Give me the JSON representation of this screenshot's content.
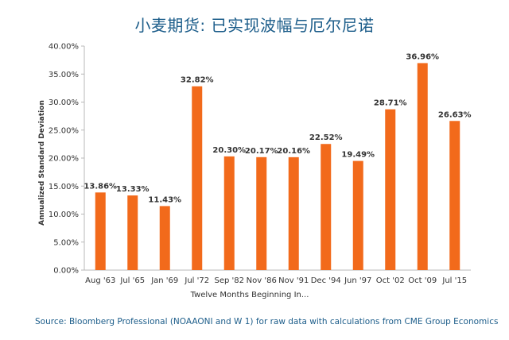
{
  "title": "小麦期货: 已实现波幅与厄尔尼诺",
  "source": "Source: Bloomberg Professional (NOAAONI and W 1) for raw data with calculations from CME Group Economics",
  "chart_data": {
    "type": "bar",
    "categories": [
      "Aug '63",
      "Jul '65",
      "Jan '69",
      "Jul '72",
      "Sep '82",
      "Nov '86",
      "Nov '91",
      "Dec '94",
      "Jun '97",
      "Oct '02",
      "Oct '09",
      "Jul '15"
    ],
    "values": [
      13.86,
      13.33,
      11.43,
      32.82,
      20.3,
      20.17,
      20.16,
      22.52,
      19.49,
      28.71,
      36.96,
      26.63
    ],
    "data_labels": [
      "13.86%",
      "13.33%",
      "11.43%",
      "32.82%",
      "20.30%",
      "20.17%",
      "20.16%",
      "22.52%",
      "19.49%",
      "28.71%",
      "36.96%",
      "26.63%"
    ],
    "xlabel": "Twelve Months Beginning In...",
    "ylabel": "Annualized Standard Deviation",
    "ylim": [
      0,
      40
    ],
    "yticks": [
      0,
      5,
      10,
      15,
      20,
      25,
      30,
      35,
      40
    ],
    "ytick_labels": [
      "0.00%",
      "5.00%",
      "10.00%",
      "15.00%",
      "20.00%",
      "25.00%",
      "30.00%",
      "35.00%",
      "40.00%"
    ],
    "grid": false,
    "bar_color": "#f26a1b",
    "text_color": "#333333"
  }
}
